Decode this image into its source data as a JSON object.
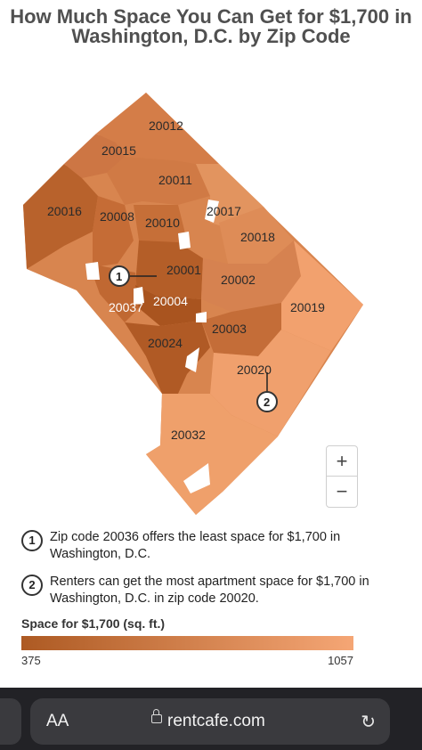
{
  "page": {
    "title": "How Much Space You Can Get for $1,700 in Washington, D.C. by Zip Code"
  },
  "map": {
    "zip_labels": [
      "20012",
      "20015",
      "20011",
      "20016",
      "20008",
      "20010",
      "20017",
      "20018",
      "20001",
      "20002",
      "20037",
      "20004",
      "20019",
      "20003",
      "20024",
      "20020",
      "20032"
    ],
    "markers": [
      "1",
      "2"
    ],
    "zoom_in": "+",
    "zoom_out": "−"
  },
  "notes": [
    {
      "num": "1",
      "text": "Zip code 20036 offers the least space for $1,700 in Washington, D.C."
    },
    {
      "num": "2",
      "text": "Renters can get the most apartment space for $1,700 in Washington, D.C. in zip code 20020."
    }
  ],
  "legend": {
    "title": "Space for $1,700 (sq. ft.)",
    "min": "375",
    "max": "1057",
    "color_low": "#ad5a23",
    "color_high": "#f5a675"
  },
  "browser": {
    "text_size_label": "AA",
    "domain": "rentcafe.com",
    "reload_icon": "reload-icon"
  }
}
